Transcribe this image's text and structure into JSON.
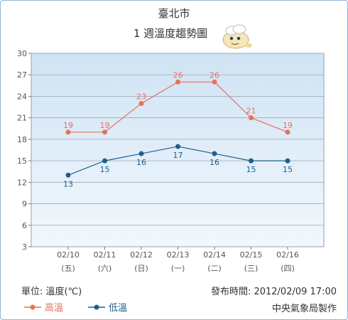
{
  "header": {
    "city": "臺北市",
    "subtitle": "1 週溫度趨勢圖",
    "mascot_icon": "cloud-mascot-icon"
  },
  "footer": {
    "unit": "單位: 溫度(℃)",
    "published": "發布時間: 2012/02/09 17:00",
    "agency": "中央氣象局製作"
  },
  "colors": {
    "high": "#e8705a",
    "low": "#1f5f8b",
    "plot_top": "#cfe3f4",
    "plot_bottom": "#f2f8fd",
    "grid": "#9aaab8"
  },
  "chart_data": {
    "type": "line",
    "title": "1 週溫度趨勢圖",
    "categories": [
      "02/10",
      "02/11",
      "02/12",
      "02/13",
      "02/14",
      "02/15",
      "02/16"
    ],
    "weekdays": [
      "(五)",
      "(六)",
      "(日)",
      "(一)",
      "(二)",
      "(三)",
      "(四)"
    ],
    "series": [
      {
        "name": "高溫",
        "values": [
          19,
          19,
          23,
          26,
          26,
          21,
          19
        ]
      },
      {
        "name": "低溫",
        "values": [
          13,
          15,
          16,
          17,
          16,
          15,
          15
        ]
      }
    ],
    "ylim": [
      3,
      30
    ],
    "yticks": [
      3,
      6,
      9,
      12,
      15,
      18,
      21,
      24,
      27,
      30
    ],
    "ylabel": "單位: 溫度(℃)",
    "grid": true,
    "legend": "bottom-left"
  }
}
